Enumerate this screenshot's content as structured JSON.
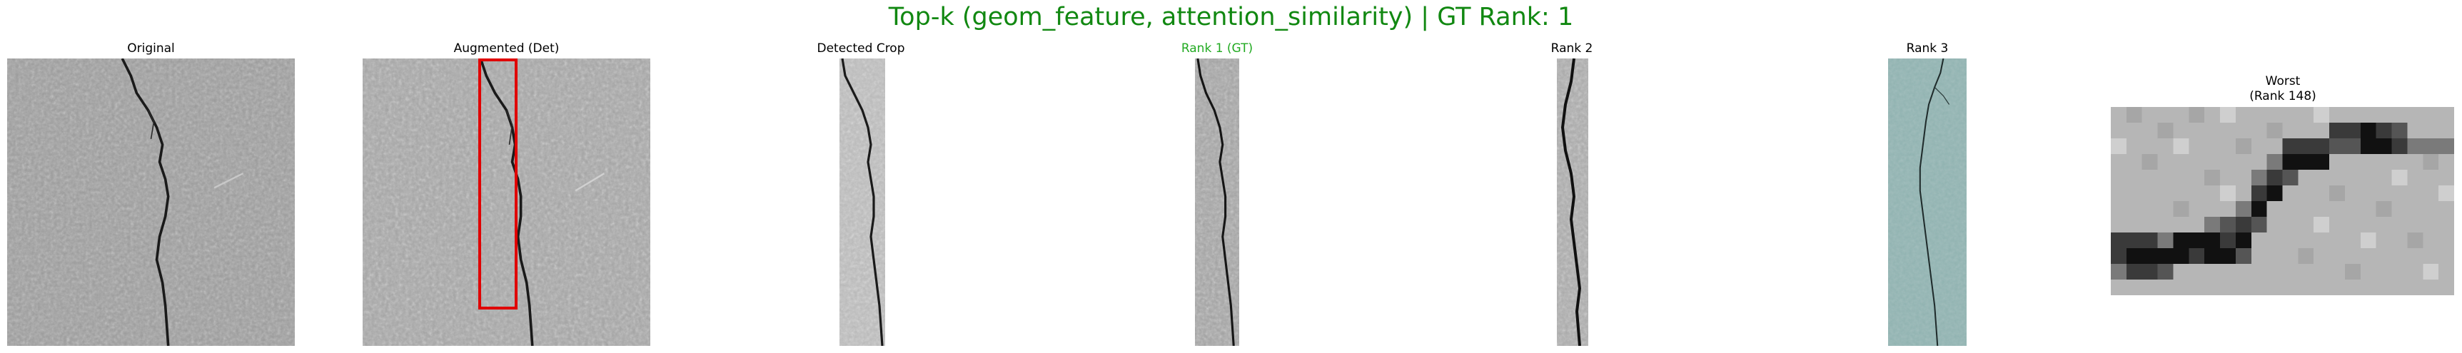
{
  "figure": {
    "title": "Top-k (geom_feature, attention_similarity) | GT Rank: 1",
    "title_color": "#118811",
    "gt_color": "#22aa22"
  },
  "panels": {
    "original": {
      "title": "Original"
    },
    "augmented": {
      "title": "Augmented (Det)",
      "box_color": "#e00000"
    },
    "detected": {
      "title": "Detected Crop"
    },
    "rank1": {
      "title": "Rank 1 (GT)"
    },
    "rank2": {
      "title": "Rank 2"
    },
    "rank3": {
      "title": "Rank 3"
    },
    "worst": {
      "title_line1": "Worst",
      "title_line2": "(Rank 148)"
    }
  }
}
